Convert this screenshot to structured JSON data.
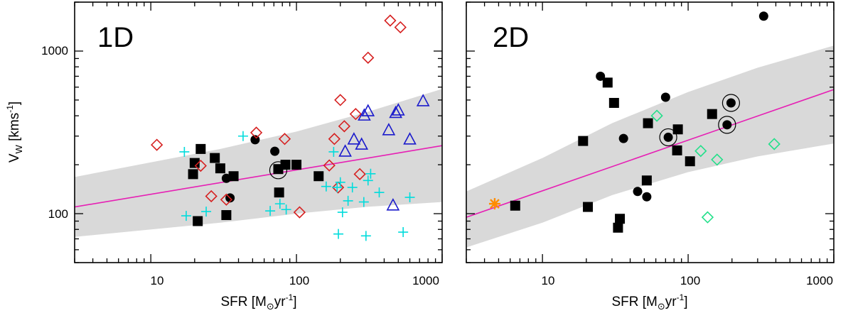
{
  "chart_data": [
    {
      "type": "scatter",
      "panel_label": "1D",
      "xscale": "log",
      "yscale": "log",
      "xlim": [
        3,
        1000
      ],
      "ylim": [
        50,
        2000
      ],
      "xticks": [
        10,
        100,
        1000
      ],
      "xtick_labels": [
        "10",
        "100",
        "1000"
      ],
      "yticks": [
        100,
        1000
      ],
      "ytick_labels": [
        "100",
        "1000"
      ],
      "ylabel": {
        "main": "V",
        "sub": "W",
        "unit_pre": " [kms",
        "unit_sup": "-1",
        "unit_post": "]"
      },
      "xlabel": {
        "pre": "SFR [M",
        "sub": "⊙",
        "mid": "yr",
        "sup": "-1",
        "post": "]"
      },
      "fit": {
        "x": [
          3,
          1000
        ],
        "y": [
          110,
          262
        ]
      },
      "band": {
        "x": [
          3,
          30,
          100,
          300,
          1000
        ],
        "upper": [
          168,
          250,
          320,
          420,
          585
        ],
        "lower": [
          72,
          88,
          100,
          110,
          118
        ]
      },
      "series": [
        {
          "name": "black-squares",
          "marker": "square",
          "color": "#000000",
          "x": [
            20,
            22,
            21,
            19.5,
            27.5,
            30,
            37,
            76,
            84,
            100,
            142,
            33,
            75
          ],
          "y": [
            205,
            250,
            90,
            175,
            220,
            190,
            170,
            135,
            200,
            200,
            170,
            98,
            188
          ]
        },
        {
          "name": "black-circles",
          "marker": "circle",
          "color": "#000000",
          "x": [
            52,
            33,
            35,
            71
          ],
          "y": [
            285,
            165,
            125,
            242
          ]
        },
        {
          "name": "circled-points",
          "marker": "ring",
          "color": "#000000",
          "x": [
            75
          ],
          "y": [
            185
          ]
        },
        {
          "name": "red-diamonds",
          "marker": "diamond",
          "color": "#d62020",
          "x": [
            11,
            22,
            26,
            33,
            53,
            83,
            105,
            168,
            182,
            193,
            200,
            213,
            255,
            272,
            310,
            440,
            517
          ],
          "y": [
            265,
            197,
            128,
            122,
            315,
            288,
            102,
            198,
            288,
            145,
            500,
            345,
            410,
            175,
            910,
            1540,
            1400
          ]
        },
        {
          "name": "blue-triangles",
          "marker": "triangle",
          "color": "#1a1acc",
          "x": [
            216,
            248,
            280,
            292,
            310,
            430,
            480,
            500,
            600,
            740,
            460
          ],
          "y": [
            240,
            285,
            265,
            400,
            425,
            325,
            415,
            430,
            285,
            490,
            112
          ]
        },
        {
          "name": "cyan-crosses",
          "marker": "plus",
          "color": "#00dcdc",
          "x": [
            17,
            17.5,
            24,
            43,
            66,
            77,
            85,
            160,
            180,
            190,
            200,
            207,
            226,
            242,
            290,
            310,
            323,
            370,
            540,
            600,
            194,
            300
          ],
          "y": [
            240,
            97,
            103,
            300,
            104,
            115,
            106,
            147,
            240,
            145,
            156,
            102,
            120,
            145,
            118,
            160,
            176,
            135,
            77,
            126,
            75,
            73
          ]
        }
      ]
    },
    {
      "type": "scatter",
      "panel_label": "2D",
      "xscale": "log",
      "yscale": "log",
      "xlim": [
        3,
        1000
      ],
      "ylim": [
        50,
        2000
      ],
      "xticks": [
        10,
        100,
        1000
      ],
      "xtick_labels": [
        "10",
        "100",
        "1000"
      ],
      "yticks": [
        100,
        1000
      ],
      "ytick_labels": [
        "100",
        "1000"
      ],
      "xlabel": {
        "pre": "SFR [M",
        "sub": "⊙",
        "mid": "yr",
        "sup": "-1",
        "post": "]"
      },
      "fit": {
        "x": [
          3,
          1000
        ],
        "y": [
          95,
          580
        ]
      },
      "band": {
        "x": [
          3,
          10,
          30,
          100,
          300,
          1000
        ],
        "upper": [
          137,
          220,
          360,
          560,
          790,
          1080
        ],
        "lower": [
          62,
          88,
          130,
          180,
          225,
          270
        ]
      },
      "series": [
        {
          "name": "black-squares",
          "marker": "square",
          "color": "#000000",
          "x": [
            6.5,
            19,
            20.5,
            28,
            31,
            33,
            34,
            52,
            53,
            84,
            85,
            103,
            146
          ],
          "y": [
            112,
            280,
            110,
            640,
            480,
            82,
            93,
            160,
            360,
            245,
            330,
            210,
            410
          ]
        },
        {
          "name": "black-circles",
          "marker": "circle",
          "color": "#000000",
          "x": [
            25,
            36,
            45,
            52,
            70,
            73,
            185,
            197,
            330
          ],
          "y": [
            700,
            290,
            137,
            127,
            520,
            295,
            352,
            480,
            1640
          ]
        },
        {
          "name": "circled-points",
          "marker": "ring",
          "color": "#000000",
          "x": [
            73,
            185,
            197
          ],
          "y": [
            295,
            352,
            480
          ]
        },
        {
          "name": "green-diamonds",
          "marker": "diamond",
          "color": "#22e08a",
          "x": [
            61,
            122,
            158,
            136,
            390
          ],
          "y": [
            400,
            243,
            215,
            95,
            268
          ]
        },
        {
          "name": "orange-asterisk",
          "marker": "asterisk",
          "color": "#ff8c00",
          "x": [
            4.7
          ],
          "y": [
            115
          ]
        }
      ]
    }
  ]
}
